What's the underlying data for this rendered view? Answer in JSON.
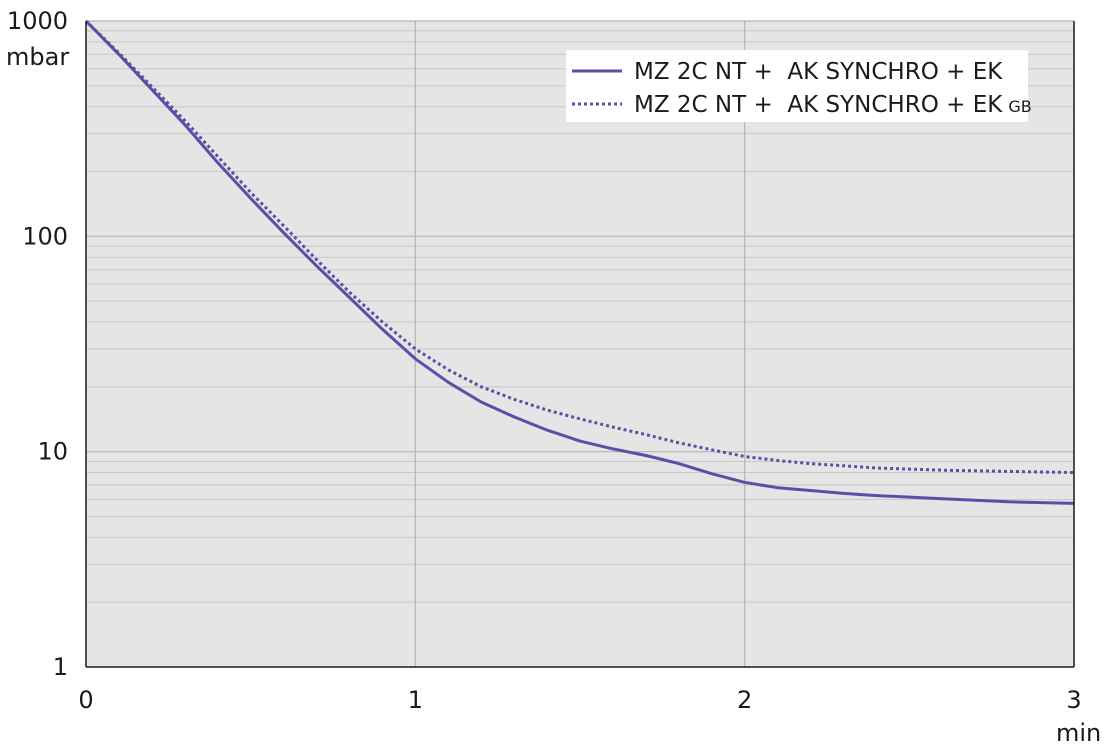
{
  "chart_data": {
    "type": "line",
    "x_axis": {
      "unit": "min",
      "range": [
        0,
        3
      ],
      "ticks": [
        {
          "value": 0,
          "label": "0"
        },
        {
          "value": 1,
          "label": "1"
        },
        {
          "value": 2,
          "label": "2"
        },
        {
          "value": 3,
          "label": "3"
        }
      ]
    },
    "y_axis": {
      "unit": "mbar",
      "scale": "log",
      "range": [
        1,
        1000
      ],
      "ticks": [
        {
          "value": 1000,
          "label": "1000"
        },
        {
          "value": 100,
          "label": "100"
        },
        {
          "value": 10,
          "label": "10"
        },
        {
          "value": 1,
          "label": "1"
        }
      ]
    },
    "grid": true,
    "legend": {
      "position": "top-right",
      "entries": [
        {
          "text": "MZ 2C NT +  AK SYNCHRO + EK",
          "subscript": ""
        },
        {
          "text": "MZ 2C NT +  AK SYNCHRO + EK",
          "subscript": "GB"
        }
      ]
    },
    "series": [
      {
        "style": "solid",
        "color": "#5a4fa6",
        "x": [
          0,
          0.1,
          0.2,
          0.3,
          0.4,
          0.5,
          0.6,
          0.7,
          0.8,
          0.9,
          1.0,
          1.1,
          1.2,
          1.3,
          1.4,
          1.5,
          1.6,
          1.7,
          1.75,
          1.8,
          1.9,
          2.0,
          2.1,
          2.2,
          2.3,
          2.4,
          2.5,
          2.6,
          2.7,
          2.8,
          2.9,
          3.0
        ],
        "y": [
          1000,
          700,
          480,
          330,
          220,
          150,
          104,
          73,
          52,
          37,
          27,
          21,
          17,
          14.5,
          12.6,
          11.2,
          10.3,
          9.6,
          9.2,
          8.8,
          7.9,
          7.2,
          6.8,
          6.6,
          6.4,
          6.25,
          6.15,
          6.05,
          5.95,
          5.85,
          5.8,
          5.75
        ]
      },
      {
        "style": "dotted",
        "color": "#5a4fa6",
        "x": [
          0,
          0.1,
          0.2,
          0.3,
          0.4,
          0.5,
          0.6,
          0.7,
          0.8,
          0.9,
          1.0,
          1.1,
          1.2,
          1.3,
          1.4,
          1.5,
          1.6,
          1.7,
          1.8,
          1.9,
          2.0,
          2.1,
          2.2,
          2.3,
          2.4,
          2.5,
          2.6,
          2.7,
          2.8,
          2.9,
          3.0
        ],
        "y": [
          1000,
          710,
          495,
          345,
          235,
          160,
          112,
          78,
          55,
          40,
          30,
          24,
          20,
          17.5,
          15.6,
          14.2,
          13.0,
          12.0,
          11.0,
          10.2,
          9.5,
          9.1,
          8.8,
          8.6,
          8.4,
          8.3,
          8.2,
          8.15,
          8.1,
          8.05,
          8.0
        ]
      }
    ]
  }
}
